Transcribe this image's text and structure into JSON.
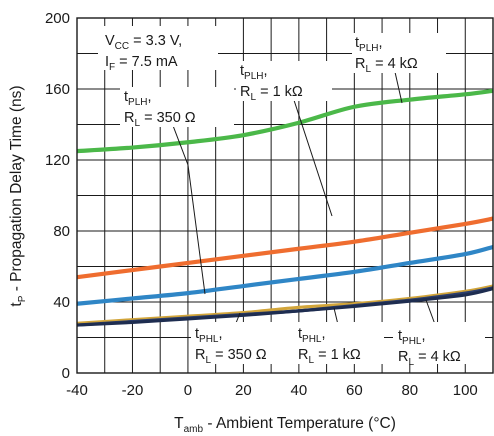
{
  "chart_data": {
    "type": "line",
    "title": "",
    "xlabel": {
      "main": "T",
      "sub": "amb",
      "rest": " - Ambient Temperature (°C)"
    },
    "ylabel": {
      "main": "t",
      "sub": "P",
      "rest": " - Propagation Delay Time (ns)"
    },
    "xlim": [
      -40,
      110
    ],
    "ylim": [
      0,
      200
    ],
    "x_ticks": [
      -40,
      -20,
      0,
      20,
      40,
      60,
      80,
      100
    ],
    "y_ticks": [
      0,
      40,
      80,
      120,
      160,
      200
    ],
    "grid": true,
    "conditions": [
      {
        "main": "V",
        "sub": "CC",
        "rest": " = 3.3 V,"
      },
      {
        "main": "I",
        "sub": "F",
        "rest": " = 7.5 mA"
      }
    ],
    "series": [
      {
        "name": "tPLH, RL = 4 kΩ",
        "color": "#4bb849",
        "x": [
          -40,
          -20,
          0,
          20,
          40,
          60,
          80,
          100,
          110
        ],
        "y": [
          125,
          127,
          130,
          134,
          141,
          150,
          154,
          157,
          159
        ]
      },
      {
        "name": "tPLH, RL = 1 kΩ",
        "color": "#ef6d2f",
        "x": [
          -40,
          -20,
          0,
          20,
          40,
          60,
          80,
          100,
          110
        ],
        "y": [
          54,
          58,
          62,
          66,
          70,
          74,
          79,
          84,
          87
        ]
      },
      {
        "name": "tPLH, RL = 350 Ω",
        "color": "#2f86c6",
        "x": [
          -40,
          -20,
          0,
          20,
          40,
          60,
          80,
          100,
          110
        ],
        "y": [
          39,
          42,
          45,
          49,
          53,
          57,
          62,
          67,
          71
        ]
      },
      {
        "name": "tPHL, RL = 4 kΩ",
        "color": "#d2a53a",
        "x": [
          -40,
          -20,
          0,
          20,
          40,
          60,
          80,
          100,
          110
        ],
        "y": [
          28,
          30,
          32,
          34,
          37,
          39,
          42,
          46,
          49
        ]
      },
      {
        "name": "tPHL, RL = 1 kΩ",
        "color": "#2c3f6e",
        "x": [
          -40,
          -20,
          0,
          20,
          40,
          60,
          80,
          100,
          110
        ],
        "y": [
          27,
          29,
          31,
          33,
          35,
          38,
          41,
          45,
          48
        ]
      },
      {
        "name": "tPHL, RL = 350 Ω",
        "color": "#1e2d50",
        "x": [
          -40,
          -20,
          0,
          20,
          40,
          60,
          80,
          100,
          110
        ],
        "y": [
          27,
          28.5,
          30.5,
          32.5,
          35,
          37.5,
          40.5,
          44,
          47.5
        ]
      }
    ],
    "annotations": [
      {
        "line1_main": "t",
        "line1_sub": "PLH",
        "line1_rest": ",",
        "line2_main": "R",
        "line2_sub": "L",
        "line2_rest": " = 4 kΩ"
      },
      {
        "line1_main": "t",
        "line1_sub": "PLH",
        "line1_rest": ",",
        "line2_main": "R",
        "line2_sub": "L",
        "line2_rest": " = 1 kΩ"
      },
      {
        "line1_main": "t",
        "line1_sub": "PLH",
        "line1_rest": ",",
        "line2_main": "R",
        "line2_sub": "L",
        "line2_rest": " = 350 Ω"
      },
      {
        "line1_main": "t",
        "line1_sub": "PHL",
        "line1_rest": ",",
        "line2_main": "R",
        "line2_sub": "L",
        "line2_rest": " = 350 Ω"
      },
      {
        "line1_main": "t",
        "line1_sub": "PHL",
        "line1_rest": ",",
        "line2_main": "R",
        "line2_sub": "L",
        "line2_rest": " = 1 kΩ"
      },
      {
        "line1_main": "t",
        "line1_sub": "PHL",
        "line1_rest": ",",
        "line2_main": "R",
        "line2_sub": "L",
        "line2_rest": " = 4 kΩ"
      }
    ]
  }
}
